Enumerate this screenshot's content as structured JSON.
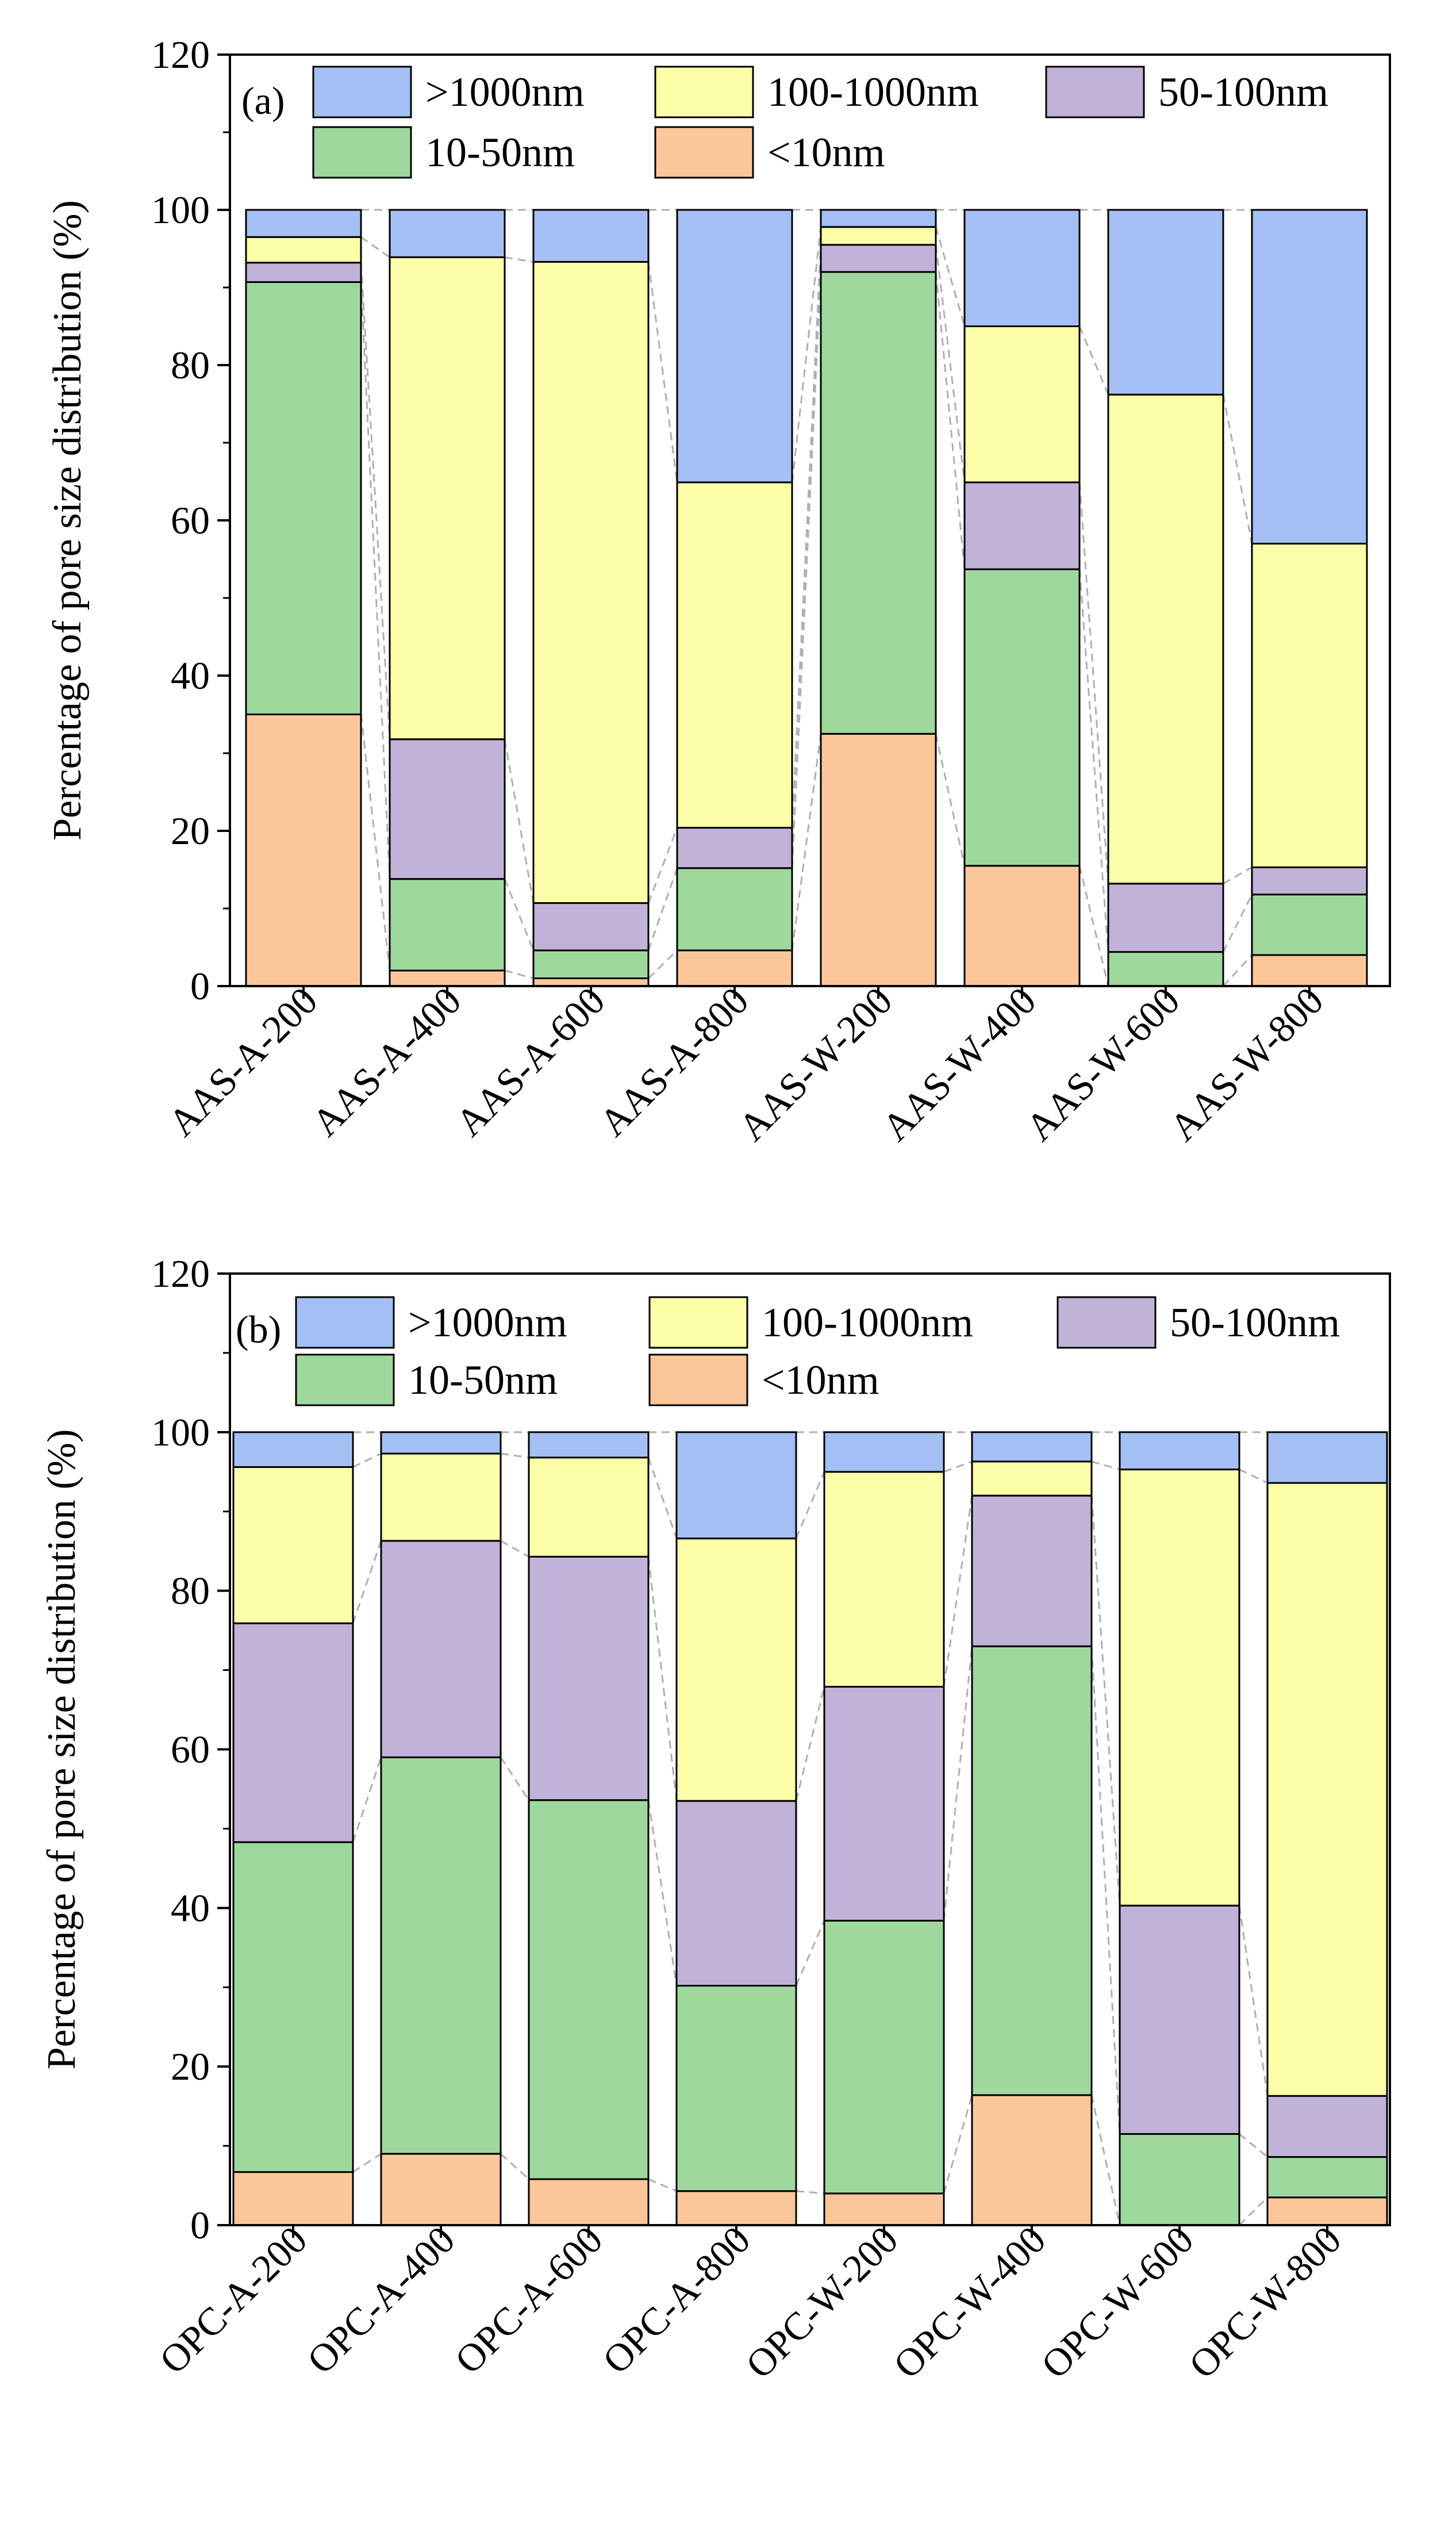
{
  "legend_colors": {
    ">1000nm": "#a4bff3",
    "100-1000nm": "#fdfea8",
    "50-100nm": "#c1b2d7",
    "10-50nm": "#9fd89d",
    "<10nm": "#fbc79a"
  },
  "connector_color": "#b0b0b0",
  "chart_data": [
    {
      "type": "bar",
      "stacked": true,
      "panel_label": "(a)",
      "ylabel": "Percentage of pore size distribution (%)",
      "xlabel": "",
      "ylim": [
        0,
        120
      ],
      "yticks": [
        "0",
        "20",
        "40",
        "60",
        "80",
        "100",
        "120"
      ],
      "legend": [
        ">1000nm",
        "100-1000nm",
        "50-100nm",
        "10-50nm",
        "<10nm"
      ],
      "categories": [
        "AAS-A-200",
        "AAS-A-400",
        "AAS-A-600",
        "AAS-A-800",
        "AAS-W-200",
        "AAS-W-400",
        "AAS-W-600",
        "AAS-W-800"
      ],
      "series": [
        {
          "name": "<10nm",
          "values": [
            35.0,
            2.0,
            1.0,
            4.6,
            32.5,
            15.5,
            0.0,
            4.0
          ]
        },
        {
          "name": "10-50nm",
          "values": [
            55.7,
            11.8,
            3.6,
            10.6,
            59.5,
            38.2,
            4.4,
            7.8
          ]
        },
        {
          "name": "50-100nm",
          "values": [
            2.5,
            18.0,
            6.1,
            5.2,
            3.5,
            11.2,
            8.8,
            3.5
          ]
        },
        {
          "name": "100-1000nm",
          "values": [
            3.3,
            62.1,
            82.6,
            44.5,
            2.3,
            20.1,
            63.0,
            41.7
          ]
        },
        {
          "name": ">1000nm",
          "values": [
            3.5,
            6.1,
            6.7,
            35.1,
            2.2,
            15.0,
            23.8,
            43.0
          ]
        }
      ]
    },
    {
      "type": "bar",
      "stacked": true,
      "panel_label": "(b)",
      "ylabel": "Percentage of pore size distribution (%)",
      "xlabel": "",
      "ylim": [
        0,
        120
      ],
      "yticks": [
        "0",
        "20",
        "40",
        "60",
        "80",
        "100",
        "120"
      ],
      "legend": [
        ">1000nm",
        "100-1000nm",
        "50-100nm",
        "10-50nm",
        "<10nm"
      ],
      "categories": [
        "OPC-A-200",
        "OPC-A-400",
        "OPC-A-600",
        "OPC-A-800",
        "OPC-W-200",
        "OPC-W-400",
        "OPC-W-600",
        "OPC-W-800"
      ],
      "series": [
        {
          "name": "<10nm",
          "values": [
            6.7,
            9.0,
            5.8,
            4.3,
            4.0,
            16.4,
            0.0,
            3.5
          ]
        },
        {
          "name": "10-50nm",
          "values": [
            41.6,
            50.0,
            47.8,
            25.9,
            34.4,
            56.6,
            11.5,
            5.1
          ]
        },
        {
          "name": "50-100nm",
          "values": [
            27.6,
            27.3,
            30.7,
            23.3,
            29.5,
            19.0,
            28.8,
            7.7
          ]
        },
        {
          "name": "100-1000nm",
          "values": [
            19.7,
            11.0,
            12.5,
            33.1,
            27.1,
            4.3,
            55.0,
            77.3
          ]
        },
        {
          "name": ">1000nm",
          "values": [
            4.4,
            2.7,
            3.2,
            13.4,
            5.0,
            3.7,
            4.7,
            6.4
          ]
        }
      ]
    }
  ]
}
